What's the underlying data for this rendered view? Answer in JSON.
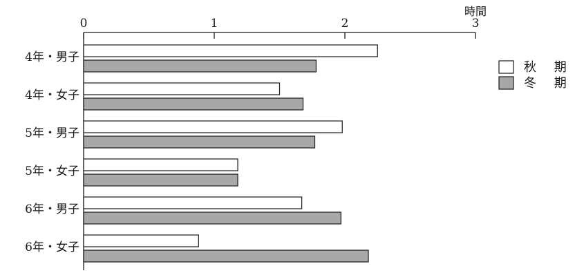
{
  "chart_data": {
    "type": "bar",
    "orientation": "horizontal",
    "unit_label": "時間",
    "x_ticks": [
      "0",
      "1",
      "2",
      "3"
    ],
    "xlim": [
      0,
      3
    ],
    "categories": [
      "4年・男子",
      "4年・女子",
      "5年・男子",
      "5年・女子",
      "6年・男子",
      "6年・女子"
    ],
    "series": [
      {
        "name": "秋期",
        "values": [
          2.25,
          1.5,
          1.98,
          1.18,
          1.67,
          0.88
        ],
        "color": "#ffffff"
      },
      {
        "name": "冬期",
        "values": [
          1.78,
          1.68,
          1.77,
          1.18,
          1.97,
          2.18
        ],
        "color": "#a8a8a8"
      }
    ],
    "legend_position": "right",
    "legend": [
      {
        "label": "秋 期",
        "color": "#ffffff"
      },
      {
        "label": "冬 期",
        "color": "#a8a8a8"
      }
    ],
    "grid": false
  }
}
